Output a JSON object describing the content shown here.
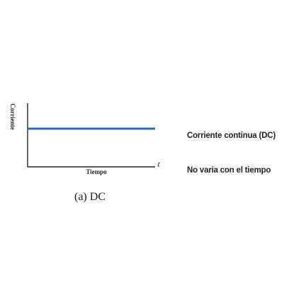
{
  "chart_data": {
    "type": "line",
    "title": "",
    "xlabel": "Tiempo",
    "ylabel": "Corriente",
    "x_axis_symbol": "t",
    "panel_label": "(a) DC",
    "xlim": [
      0,
      1
    ],
    "ylim": [
      0,
      1
    ],
    "grid": false,
    "legend": "none",
    "series": [
      {
        "x": [
          0,
          1
        ],
        "y": [
          0.6,
          0.6
        ],
        "color": "#1f6fc5"
      }
    ]
  },
  "notes": {
    "line1": "Corriente continua (DC)",
    "line2": "No varia con el tiempo"
  },
  "colors": {
    "series": "#1f6fc5",
    "axis": "#222222",
    "text": "#222222"
  }
}
